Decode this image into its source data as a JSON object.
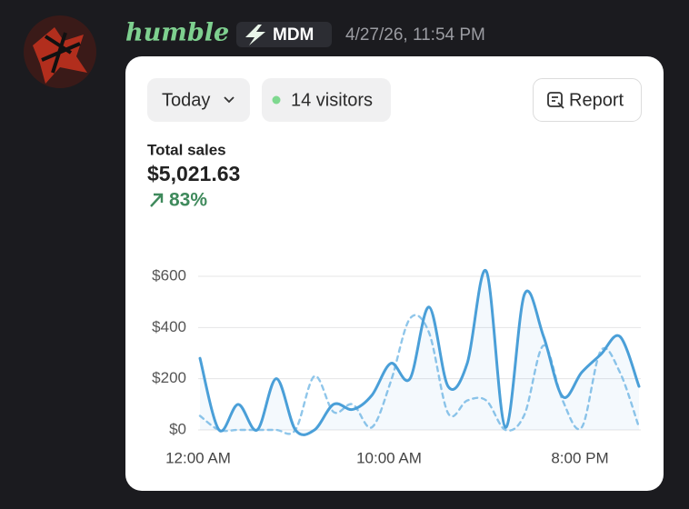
{
  "message": {
    "username": "humble",
    "badge": "MDM",
    "timestamp": "4/27/26, 11:54 PM"
  },
  "card": {
    "period": "Today",
    "visitors": "14 visitors",
    "report": "Report",
    "total_label": "Total sales",
    "total": "$5,021.63",
    "change": "83%"
  },
  "chart_data": {
    "type": "line",
    "categories": [
      "12:00 AM",
      null,
      null,
      null,
      null,
      null,
      null,
      null,
      null,
      null,
      "10:00 AM",
      null,
      null,
      null,
      null,
      null,
      null,
      null,
      null,
      null,
      "8:00 PM",
      null,
      null,
      null
    ],
    "series": [
      {
        "color": "#4a9fd8",
        "style": "solid",
        "values": [
          280,
          0,
          100,
          0,
          200,
          0,
          0,
          100,
          80,
          135,
          260,
          200,
          480,
          170,
          260,
          620,
          10,
          530,
          365,
          130,
          225,
          295,
          365,
          170
        ]
      },
      {
        "color": "#8fc6ea",
        "style": "dashed",
        "values": [
          55,
          0,
          0,
          0,
          0,
          0,
          210,
          70,
          100,
          10,
          190,
          435,
          380,
          65,
          115,
          115,
          0,
          60,
          330,
          115,
          10,
          310,
          225,
          10
        ]
      }
    ],
    "ylim": [
      0,
      620
    ],
    "yticks": [
      {
        "value": 0,
        "label": "$0"
      },
      {
        "value": 200,
        "label": "$200"
      },
      {
        "value": 400,
        "label": "$400"
      },
      {
        "value": 600,
        "label": "$600"
      }
    ],
    "grid": true
  }
}
